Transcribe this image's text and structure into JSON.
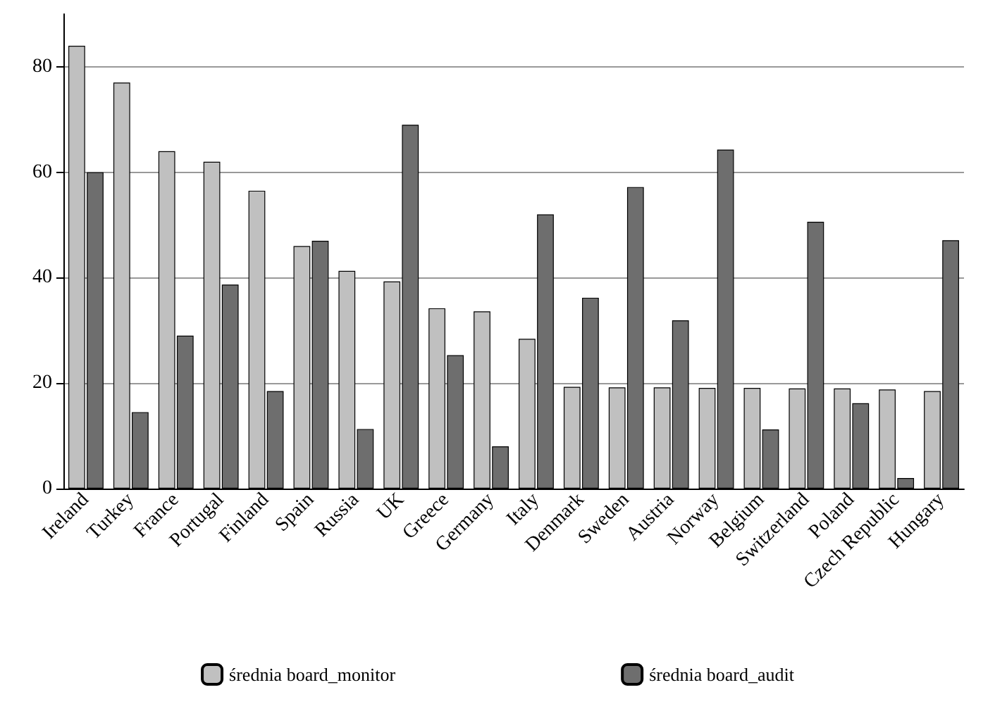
{
  "chart_data": {
    "type": "bar",
    "categories": [
      "Ireland",
      "Turkey",
      "France",
      "Portugal",
      "Finland",
      "Spain",
      "Russia",
      "UK",
      "Greece",
      "Germany",
      "Italy",
      "Denmark",
      "Sweden",
      "Austria",
      "Norway",
      "Belgium",
      "Switzerland",
      "Poland",
      "Czech Republic",
      "Hungary"
    ],
    "series": [
      {
        "name": "średnia board_monitor",
        "color": "#c0c0c0",
        "values": [
          84,
          77,
          64,
          62,
          56.5,
          46,
          41.3,
          39.3,
          34.2,
          33.6,
          28.4,
          19.3,
          19.2,
          19.2,
          19.1,
          19.1,
          19,
          19,
          18.8,
          18.5
        ]
      },
      {
        "name": "średnia board_audit",
        "color": "#6e6e6e",
        "values": [
          60,
          14.5,
          29,
          38.7,
          18.5,
          47,
          11.3,
          69,
          25.3,
          8,
          52,
          36.2,
          57.2,
          31.9,
          64.3,
          11.2,
          50.6,
          16.2,
          2,
          47.1
        ]
      }
    ],
    "ylim": [
      0,
      90
    ],
    "yticks": [
      0,
      20,
      40,
      60,
      80
    ],
    "grid": "y",
    "legend": "bottom"
  }
}
